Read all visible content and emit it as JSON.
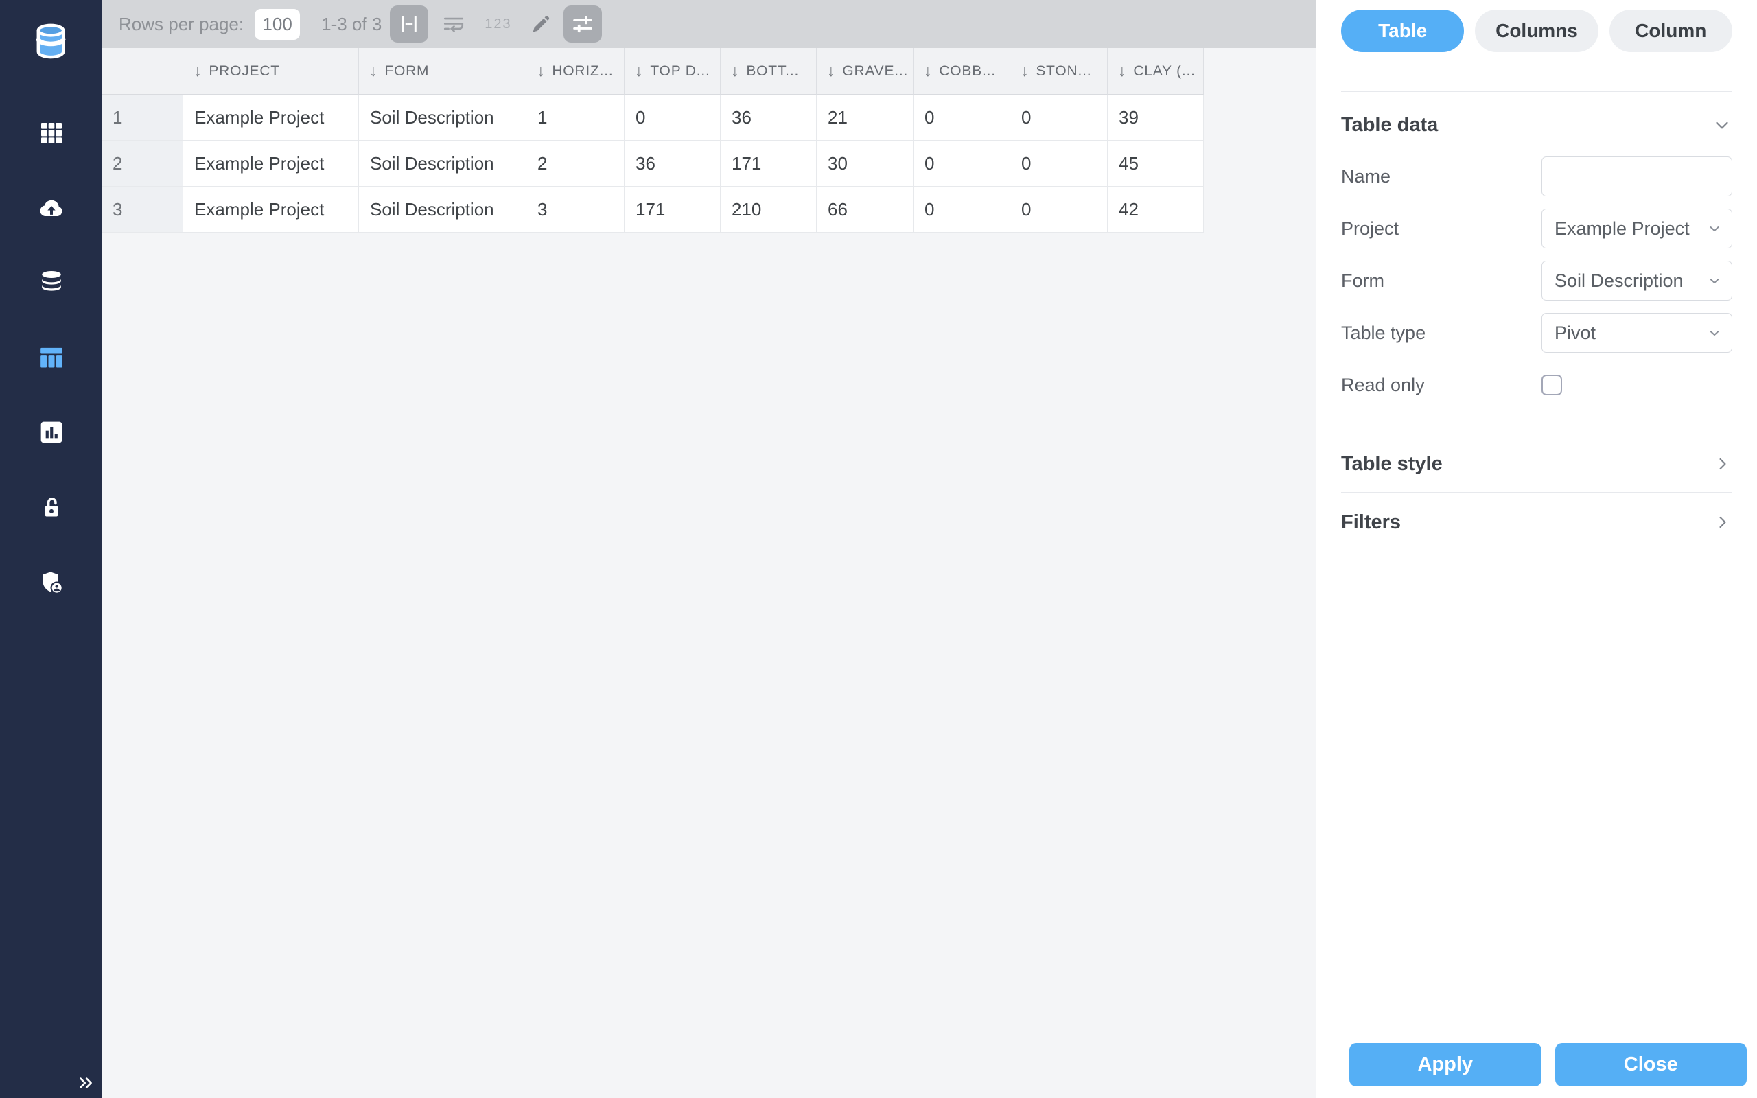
{
  "colors": {
    "accent_blue": "#55aff6",
    "sidebar_navy": "#232d47",
    "toolbar_gray": "#d4d6d9",
    "main_bg": "#f4f5f7"
  },
  "sidebar": {
    "logo_icon": "database-logo-icon",
    "nav": [
      {
        "name": "apps",
        "icon": "grid-icon",
        "active": false
      },
      {
        "name": "cloud-upload",
        "icon": "cloud-upload-icon",
        "active": false
      },
      {
        "name": "database",
        "icon": "database-icon",
        "active": false
      },
      {
        "name": "tables",
        "icon": "table-icon",
        "active": true
      },
      {
        "name": "charts",
        "icon": "bar-chart-icon",
        "active": false
      },
      {
        "name": "permissions",
        "icon": "lock-open-icon",
        "active": false
      },
      {
        "name": "admin",
        "icon": "shield-user-icon",
        "active": false
      }
    ],
    "collapse_icon": "double-chevron-right-icon"
  },
  "toolbar": {
    "rows_per_page_label": "Rows per page:",
    "rows_per_page_value": "100",
    "range_text": "1-3 of 3",
    "numbers_icon_text": "123",
    "buttons": [
      {
        "icon": "column-width-icon",
        "kind": "active-bg"
      },
      {
        "icon": "wrap-text-icon",
        "kind": "plain"
      },
      {
        "icon": "numbers-123-icon",
        "kind": "text"
      },
      {
        "icon": "edit-pencil-icon",
        "kind": "plain"
      },
      {
        "icon": "settings-sliders-icon",
        "kind": "active-bg"
      }
    ]
  },
  "table": {
    "columns": [
      {
        "label": "PROJECT",
        "sort": "desc"
      },
      {
        "label": "FORM",
        "sort": "desc"
      },
      {
        "label": "HORIZ...",
        "sort": "desc"
      },
      {
        "label": "TOP D...",
        "sort": "desc"
      },
      {
        "label": "BOTT...",
        "sort": "desc"
      },
      {
        "label": "GRAVE...",
        "sort": "desc"
      },
      {
        "label": "COBB...",
        "sort": "desc"
      },
      {
        "label": "STON...",
        "sort": "desc"
      },
      {
        "label": "CLAY (...",
        "sort": "desc"
      }
    ],
    "rows": [
      {
        "num": "1",
        "cells": [
          "Example Project",
          "Soil Description",
          "1",
          "0",
          "36",
          "21",
          "0",
          "0",
          "39"
        ]
      },
      {
        "num": "2",
        "cells": [
          "Example Project",
          "Soil Description",
          "2",
          "36",
          "171",
          "30",
          "0",
          "0",
          "45"
        ]
      },
      {
        "num": "3",
        "cells": [
          "Example Project",
          "Soil Description",
          "3",
          "171",
          "210",
          "66",
          "0",
          "0",
          "42"
        ]
      }
    ]
  },
  "panel": {
    "tabs": [
      {
        "label": "Table",
        "active": true
      },
      {
        "label": "Columns",
        "active": false
      },
      {
        "label": "Column",
        "active": false
      }
    ],
    "table_data": {
      "title": "Table data",
      "collapse_icon": "chevron-down-icon",
      "fields": [
        {
          "label": "Name",
          "type": "input",
          "value": "",
          "placeholder": ""
        },
        {
          "label": "Project",
          "type": "select",
          "value": "Example Project"
        },
        {
          "label": "Form",
          "type": "select",
          "value": "Soil Description"
        },
        {
          "label": "Table type",
          "type": "select",
          "value": "Pivot"
        },
        {
          "label": "Read only",
          "type": "checkbox",
          "checked": false
        }
      ]
    },
    "table_style": {
      "title": "Table style",
      "expand_icon": "chevron-right-icon"
    },
    "filters": {
      "title": "Filters",
      "expand_icon": "chevron-right-icon"
    },
    "apply_label": "Apply",
    "close_label": "Close"
  }
}
